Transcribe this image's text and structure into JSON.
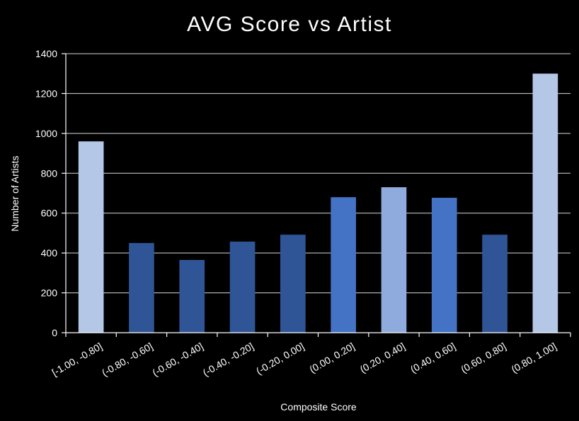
{
  "chart_data": {
    "type": "bar",
    "title": "AVG Score vs Artist",
    "xlabel": "Composite Score",
    "ylabel": "Number of Artists",
    "ylim": [
      0,
      1400
    ],
    "yticks": [
      0,
      200,
      400,
      600,
      800,
      1000,
      1200,
      1400
    ],
    "grid": true,
    "categories": [
      "[-1.00, -0.80]",
      "(-0.80, -0.60]",
      "(-0.60, -0.40]",
      "(-0.40, -0.20]",
      "(-0.20, 0.00]",
      "(0.00, 0.20]",
      "(0.20, 0.40]",
      "(0.40, 0.60]",
      "(0.60, 0.80]",
      "(0.80, 1.00]"
    ],
    "values": [
      960,
      450,
      365,
      457,
      492,
      680,
      730,
      677,
      492,
      1300
    ],
    "bar_colors": [
      "#B4C7E7",
      "#2F5597",
      "#2F5597",
      "#2F5597",
      "#2F5597",
      "#4472C4",
      "#8FAADC",
      "#4472C4",
      "#2F5597",
      "#B4C7E7"
    ],
    "background": "#000000",
    "text_color": "#FFFFFF",
    "grid_color": "#FFFFFF"
  }
}
